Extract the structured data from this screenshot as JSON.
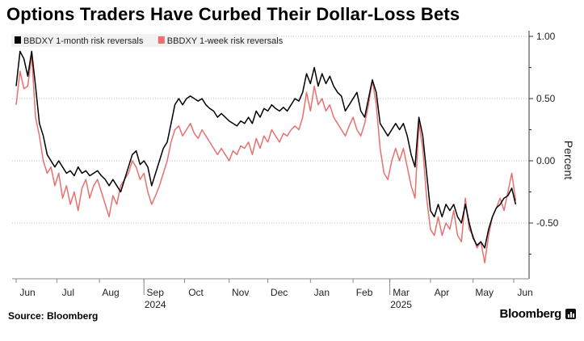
{
  "chart_data": {
    "type": "line",
    "title": "Options Traders Have Curbed Their Dollar-Loss Bets",
    "xlabel": "",
    "ylabel": "Percent",
    "ylim": [
      -0.85,
      1.0
    ],
    "yticks": [
      1.0,
      0.5,
      0.0,
      -0.5
    ],
    "ytick_labels": [
      "1.00",
      "0.50",
      "0.00",
      "-0.50"
    ],
    "grid": true,
    "legend": "top-left",
    "x_start": 0,
    "x_end": 262,
    "month_ticks": [
      {
        "label": "Jun",
        "x": 0
      },
      {
        "label": "Jul",
        "x": 21
      },
      {
        "label": "Aug",
        "x": 43
      },
      {
        "label": "Sep",
        "x": 66
      },
      {
        "label": "Oct",
        "x": 87
      },
      {
        "label": "Nov",
        "x": 110
      },
      {
        "label": "Dec",
        "x": 130
      },
      {
        "label": "Jan",
        "x": 152
      },
      {
        "label": "Feb",
        "x": 174
      },
      {
        "label": "Mar",
        "x": 193
      },
      {
        "label": "Apr",
        "x": 214
      },
      {
        "label": "May",
        "x": 236
      },
      {
        "label": "Jun",
        "x": 257
      }
    ],
    "year_labels": [
      {
        "label": "2024",
        "x": 66
      },
      {
        "label": "2025",
        "x": 193
      }
    ],
    "series": [
      {
        "name": "BBDXY 1-month risk reversals",
        "color": "#000000",
        "points": [
          [
            0,
            0.6
          ],
          [
            2,
            0.88
          ],
          [
            4,
            0.82
          ],
          [
            6,
            0.68
          ],
          [
            8,
            0.88
          ],
          [
            10,
            0.6
          ],
          [
            12,
            0.3
          ],
          [
            14,
            0.2
          ],
          [
            16,
            0.05
          ],
          [
            18,
            0.0
          ],
          [
            20,
            -0.05
          ],
          [
            22,
            0.0
          ],
          [
            24,
            -0.05
          ],
          [
            26,
            -0.1
          ],
          [
            28,
            -0.08
          ],
          [
            30,
            -0.12
          ],
          [
            32,
            -0.05
          ],
          [
            34,
            -0.1
          ],
          [
            36,
            -0.08
          ],
          [
            38,
            -0.12
          ],
          [
            40,
            -0.1
          ],
          [
            42,
            -0.08
          ],
          [
            44,
            -0.12
          ],
          [
            46,
            -0.15
          ],
          [
            48,
            -0.2
          ],
          [
            50,
            -0.15
          ],
          [
            52,
            -0.2
          ],
          [
            54,
            -0.25
          ],
          [
            56,
            -0.15
          ],
          [
            58,
            -0.05
          ],
          [
            60,
            0.05
          ],
          [
            62,
            0.08
          ],
          [
            64,
            -0.03
          ],
          [
            66,
            0.0
          ],
          [
            68,
            -0.05
          ],
          [
            70,
            -0.2
          ],
          [
            72,
            -0.1
          ],
          [
            74,
            0.0
          ],
          [
            76,
            0.1
          ],
          [
            78,
            0.15
          ],
          [
            80,
            0.3
          ],
          [
            82,
            0.45
          ],
          [
            84,
            0.5
          ],
          [
            86,
            0.45
          ],
          [
            88,
            0.5
          ],
          [
            90,
            0.52
          ],
          [
            92,
            0.5
          ],
          [
            94,
            0.48
          ],
          [
            96,
            0.5
          ],
          [
            98,
            0.45
          ],
          [
            100,
            0.42
          ],
          [
            102,
            0.4
          ],
          [
            104,
            0.35
          ],
          [
            106,
            0.38
          ],
          [
            108,
            0.35
          ],
          [
            110,
            0.32
          ],
          [
            112,
            0.3
          ],
          [
            114,
            0.28
          ],
          [
            116,
            0.32
          ],
          [
            118,
            0.3
          ],
          [
            120,
            0.35
          ],
          [
            122,
            0.3
          ],
          [
            124,
            0.4
          ],
          [
            126,
            0.35
          ],
          [
            128,
            0.42
          ],
          [
            130,
            0.4
          ],
          [
            132,
            0.45
          ],
          [
            134,
            0.42
          ],
          [
            136,
            0.4
          ],
          [
            138,
            0.43
          ],
          [
            140,
            0.4
          ],
          [
            142,
            0.45
          ],
          [
            144,
            0.5
          ],
          [
            146,
            0.48
          ],
          [
            148,
            0.55
          ],
          [
            150,
            0.7
          ],
          [
            152,
            0.62
          ],
          [
            154,
            0.75
          ],
          [
            156,
            0.6
          ],
          [
            158,
            0.7
          ],
          [
            160,
            0.62
          ],
          [
            162,
            0.68
          ],
          [
            164,
            0.6
          ],
          [
            166,
            0.55
          ],
          [
            168,
            0.52
          ],
          [
            170,
            0.4
          ],
          [
            172,
            0.45
          ],
          [
            174,
            0.5
          ],
          [
            176,
            0.55
          ],
          [
            178,
            0.4
          ],
          [
            180,
            0.35
          ],
          [
            182,
            0.5
          ],
          [
            184,
            0.65
          ],
          [
            186,
            0.55
          ],
          [
            188,
            0.3
          ],
          [
            190,
            0.25
          ],
          [
            192,
            0.2
          ],
          [
            194,
            0.25
          ],
          [
            196,
            0.3
          ],
          [
            198,
            0.25
          ],
          [
            200,
            0.3
          ],
          [
            202,
            0.2
          ],
          [
            204,
            0.05
          ],
          [
            206,
            -0.05
          ],
          [
            208,
            0.35
          ],
          [
            210,
            0.2
          ],
          [
            212,
            -0.1
          ],
          [
            214,
            -0.4
          ],
          [
            216,
            -0.45
          ],
          [
            218,
            -0.35
          ],
          [
            220,
            -0.45
          ],
          [
            222,
            -0.35
          ],
          [
            224,
            -0.4
          ],
          [
            226,
            -0.35
          ],
          [
            228,
            -0.45
          ],
          [
            230,
            -0.5
          ],
          [
            232,
            -0.35
          ],
          [
            234,
            -0.5
          ],
          [
            236,
            -0.62
          ],
          [
            238,
            -0.68
          ],
          [
            240,
            -0.65
          ],
          [
            242,
            -0.7
          ],
          [
            244,
            -0.55
          ],
          [
            246,
            -0.45
          ],
          [
            248,
            -0.38
          ],
          [
            250,
            -0.35
          ],
          [
            252,
            -0.3
          ],
          [
            254,
            -0.28
          ],
          [
            256,
            -0.22
          ],
          [
            258,
            -0.35
          ]
        ]
      },
      {
        "name": "BBDXY 1-week risk reversals",
        "color": "#e8716f",
        "points": [
          [
            0,
            0.45
          ],
          [
            2,
            0.72
          ],
          [
            4,
            0.58
          ],
          [
            6,
            0.6
          ],
          [
            8,
            0.85
          ],
          [
            10,
            0.35
          ],
          [
            12,
            0.2
          ],
          [
            14,
            0.0
          ],
          [
            16,
            -0.1
          ],
          [
            18,
            -0.05
          ],
          [
            20,
            -0.2
          ],
          [
            22,
            -0.1
          ],
          [
            24,
            -0.3
          ],
          [
            26,
            -0.2
          ],
          [
            28,
            -0.35
          ],
          [
            30,
            -0.25
          ],
          [
            32,
            -0.4
          ],
          [
            34,
            -0.22
          ],
          [
            36,
            -0.15
          ],
          [
            38,
            -0.3
          ],
          [
            40,
            -0.2
          ],
          [
            42,
            -0.15
          ],
          [
            44,
            -0.25
          ],
          [
            46,
            -0.35
          ],
          [
            48,
            -0.45
          ],
          [
            50,
            -0.28
          ],
          [
            52,
            -0.35
          ],
          [
            54,
            -0.2
          ],
          [
            56,
            -0.15
          ],
          [
            58,
            -0.1
          ],
          [
            60,
            0.0
          ],
          [
            62,
            -0.05
          ],
          [
            64,
            -0.15
          ],
          [
            66,
            -0.1
          ],
          [
            68,
            -0.25
          ],
          [
            70,
            -0.35
          ],
          [
            72,
            -0.28
          ],
          [
            74,
            -0.2
          ],
          [
            76,
            -0.1
          ],
          [
            78,
            0.0
          ],
          [
            80,
            0.15
          ],
          [
            82,
            0.25
          ],
          [
            84,
            0.28
          ],
          [
            86,
            0.2
          ],
          [
            88,
            0.25
          ],
          [
            90,
            0.3
          ],
          [
            92,
            0.22
          ],
          [
            94,
            0.18
          ],
          [
            96,
            0.25
          ],
          [
            98,
            0.2
          ],
          [
            100,
            0.15
          ],
          [
            102,
            0.1
          ],
          [
            104,
            0.05
          ],
          [
            106,
            0.1
          ],
          [
            108,
            0.05
          ],
          [
            110,
            0.0
          ],
          [
            112,
            0.08
          ],
          [
            114,
            0.05
          ],
          [
            116,
            0.12
          ],
          [
            118,
            0.1
          ],
          [
            120,
            0.15
          ],
          [
            122,
            0.05
          ],
          [
            124,
            0.18
          ],
          [
            126,
            0.1
          ],
          [
            128,
            0.2
          ],
          [
            130,
            0.15
          ],
          [
            132,
            0.25
          ],
          [
            134,
            0.2
          ],
          [
            136,
            0.15
          ],
          [
            138,
            0.22
          ],
          [
            140,
            0.2
          ],
          [
            142,
            0.25
          ],
          [
            144,
            0.28
          ],
          [
            146,
            0.25
          ],
          [
            148,
            0.35
          ],
          [
            150,
            0.55
          ],
          [
            152,
            0.4
          ],
          [
            154,
            0.6
          ],
          [
            156,
            0.45
          ],
          [
            158,
            0.5
          ],
          [
            160,
            0.4
          ],
          [
            162,
            0.45
          ],
          [
            164,
            0.35
          ],
          [
            166,
            0.3
          ],
          [
            168,
            0.25
          ],
          [
            170,
            0.2
          ],
          [
            172,
            0.28
          ],
          [
            174,
            0.35
          ],
          [
            176,
            0.25
          ],
          [
            178,
            0.2
          ],
          [
            180,
            0.3
          ],
          [
            182,
            0.45
          ],
          [
            184,
            0.65
          ],
          [
            186,
            0.45
          ],
          [
            188,
            0.1
          ],
          [
            190,
            -0.1
          ],
          [
            192,
            -0.15
          ],
          [
            194,
            0.0
          ],
          [
            196,
            0.1
          ],
          [
            198,
            0.0
          ],
          [
            200,
            0.1
          ],
          [
            202,
            -0.05
          ],
          [
            204,
            -0.2
          ],
          [
            206,
            -0.3
          ],
          [
            208,
            0.3
          ],
          [
            210,
            0.1
          ],
          [
            212,
            -0.3
          ],
          [
            214,
            -0.55
          ],
          [
            216,
            -0.6
          ],
          [
            218,
            -0.45
          ],
          [
            220,
            -0.6
          ],
          [
            222,
            -0.5
          ],
          [
            224,
            -0.55
          ],
          [
            226,
            -0.4
          ],
          [
            228,
            -0.6
          ],
          [
            230,
            -0.65
          ],
          [
            232,
            -0.3
          ],
          [
            234,
            -0.55
          ],
          [
            236,
            -0.6
          ],
          [
            238,
            -0.7
          ],
          [
            240,
            -0.65
          ],
          [
            242,
            -0.82
          ],
          [
            244,
            -0.6
          ],
          [
            246,
            -0.45
          ],
          [
            248,
            -0.38
          ],
          [
            250,
            -0.3
          ],
          [
            252,
            -0.4
          ],
          [
            254,
            -0.25
          ],
          [
            256,
            -0.1
          ],
          [
            258,
            -0.32
          ]
        ]
      }
    ]
  },
  "footer": {
    "source": "Source: Bloomberg",
    "brand": "Bloomberg"
  }
}
